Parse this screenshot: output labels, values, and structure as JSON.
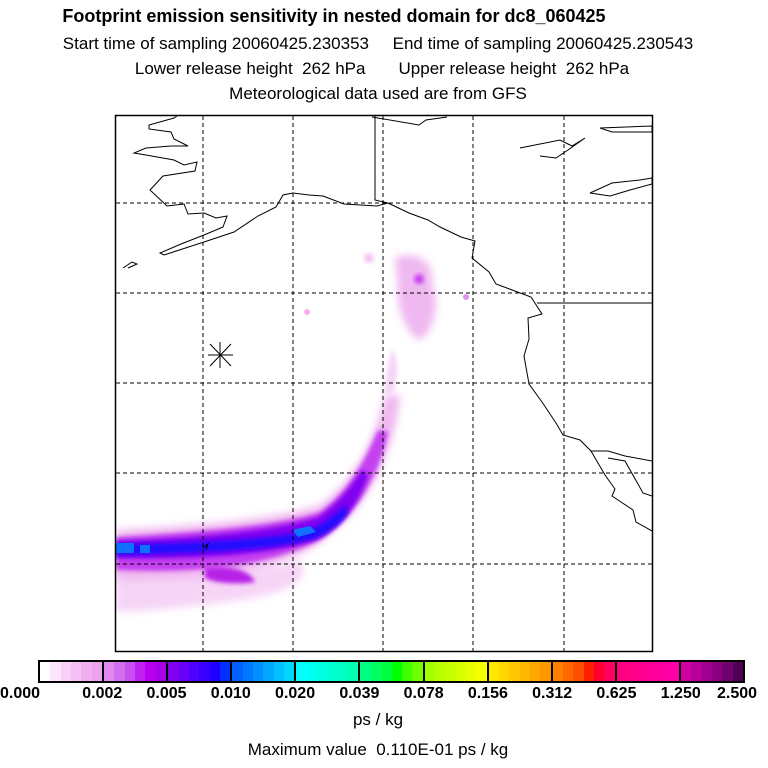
{
  "header": {
    "title": "Footprint emission sensitivity in nested domain for dc8_060425",
    "line2": "Start time of sampling 20060425.230353     End time of sampling 20060425.230543",
    "line3": "Lower release height  262 hPa       Upper release height  262 hPa",
    "line4": "Meteorological data used are from GFS"
  },
  "colorbar": {
    "labels": [
      "0.000",
      "0.002",
      "0.005",
      "0.010",
      "0.020",
      "0.039",
      "0.078",
      "0.156",
      "0.312",
      "0.625",
      "1.250",
      "2.500"
    ],
    "segments": [
      [
        "#ffffff",
        "#fde6fd",
        "#f9d0f9",
        "#f5c0f5",
        "#f0b0f0",
        "#eda2ed"
      ],
      [
        "#e088f0",
        "#d070ee",
        "#c850f0",
        "#c020f0",
        "#b800f0",
        "#a800e8"
      ],
      [
        "#8000f0",
        "#6800f8",
        "#5000ff",
        "#3800ff",
        "#2000ff",
        "#0030ff"
      ],
      [
        "#0060ff",
        "#0078ff",
        "#0090ff",
        "#00a8ff",
        "#00c0ff",
        "#00d8ff"
      ],
      [
        "#00ffff",
        "#00fff0",
        "#00ffe0",
        "#00ffd0",
        "#00ffc0",
        "#00ffb0"
      ],
      [
        "#00ff80",
        "#00ff60",
        "#00ff40",
        "#00ff00",
        "#40ff00",
        "#70ff00"
      ],
      [
        "#a0ff00",
        "#b8ff00",
        "#c8ff00",
        "#d8ff00",
        "#e8ff00",
        "#f8ff00"
      ],
      [
        "#ffe800",
        "#ffd800",
        "#ffc800",
        "#ffb800",
        "#ffa800",
        "#ff9800"
      ],
      [
        "#ff8000",
        "#ff6800",
        "#ff5000",
        "#ff2000",
        "#ff0030",
        "#ff0060"
      ],
      [
        "#ff0080",
        "#ff0088",
        "#ff0090",
        "#ff0098",
        "#ff00a0",
        "#ff00a8"
      ],
      [
        "#d000a0",
        "#b80098",
        "#a00090",
        "#880080",
        "#700070",
        "#500050"
      ]
    ],
    "unit": "ps / kg"
  },
  "footer": {
    "max_value": "Maximum value  0.110E-01 ps / kg"
  },
  "map": {
    "release_marker": "asterisk-icon",
    "colors": {
      "light": "#f3c4f3",
      "mid": "#c840f0",
      "violet": "#8000f0",
      "core": "#2000ff",
      "peak": "#0080ff"
    }
  }
}
